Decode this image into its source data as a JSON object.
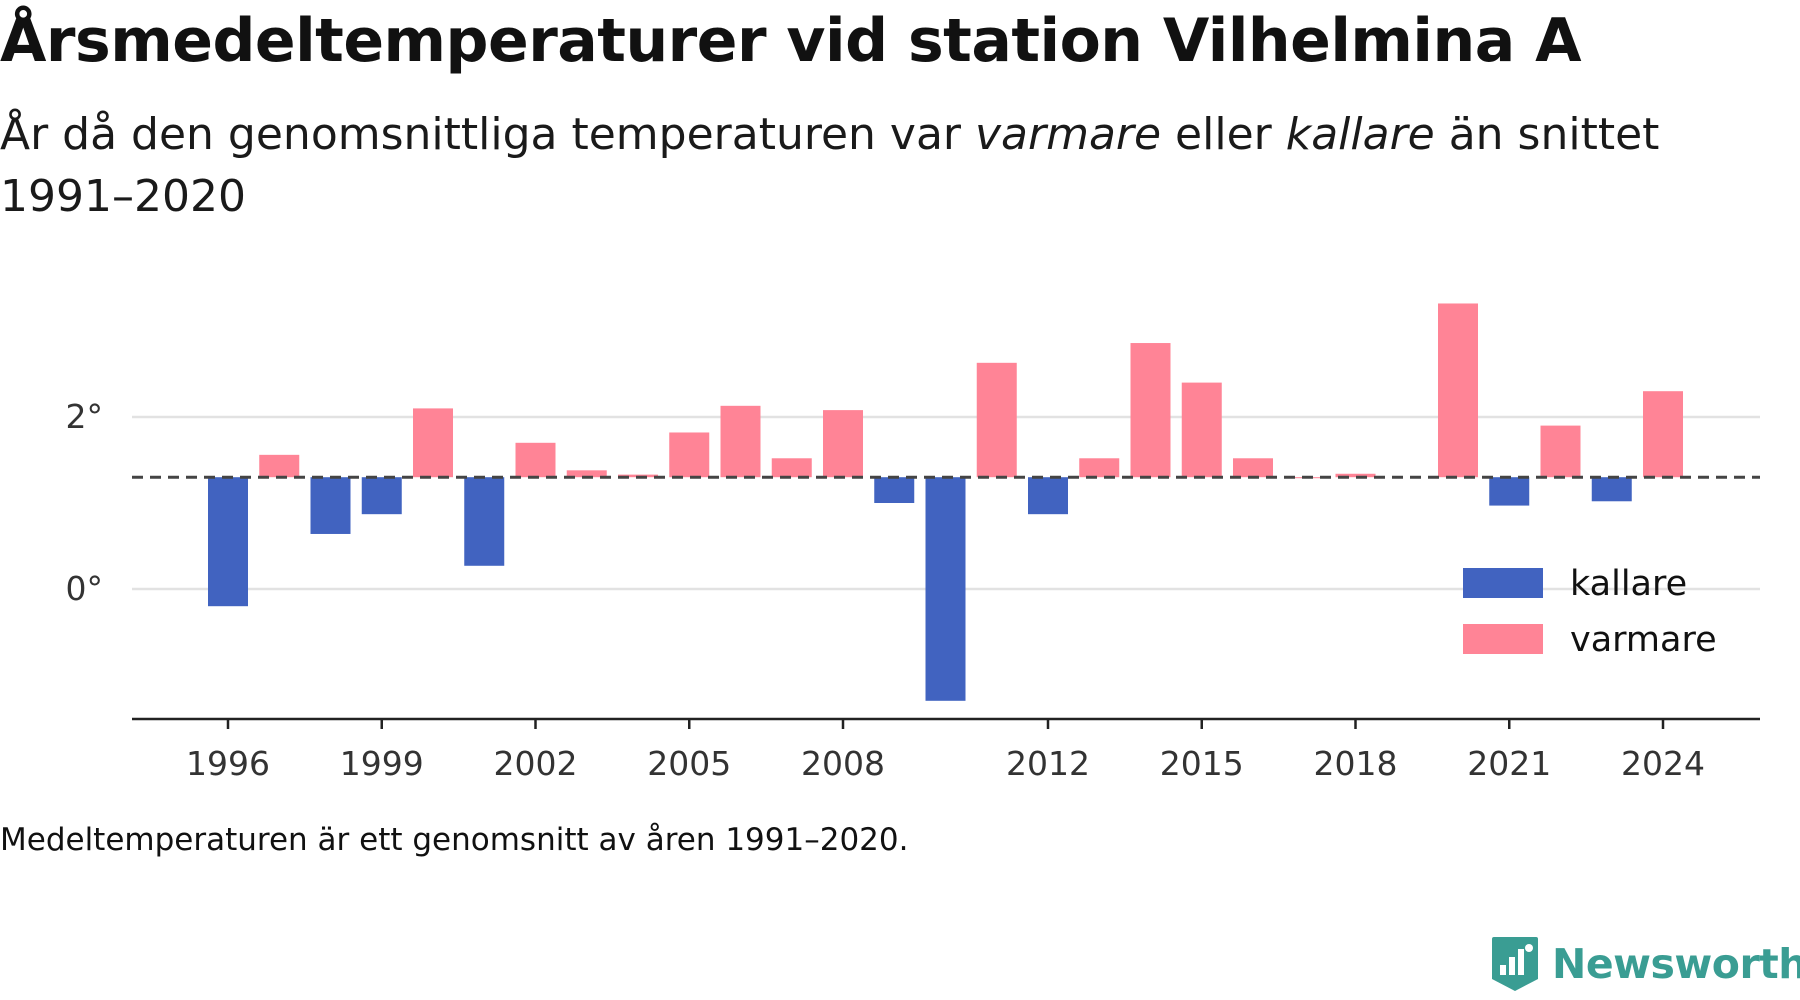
{
  "title": "Årsmedeltemperaturer vid station Vilhelmina A",
  "subtitle": {
    "part1": "År då den genomsnittliga temperaturen var ",
    "em1": "varmare",
    "part2": " eller ",
    "em2": "kallare",
    "part3": " än snittet 1991–2020"
  },
  "footnote": "Medeltemperaturen är ett genomsnitt av åren 1991–2020.",
  "brand": {
    "name": "Newsworthy",
    "color": "#3a9d93",
    "icon": "newsworthy-logo-icon"
  },
  "chart_data": {
    "type": "bar",
    "reference_line": {
      "value": 1.3,
      "style": "dashed"
    },
    "categories": [
      1996,
      1997,
      1998,
      1999,
      2000,
      2001,
      2002,
      2003,
      2004,
      2005,
      2006,
      2007,
      2008,
      2009,
      2010,
      2011,
      2012,
      2013,
      2014,
      2015,
      2016,
      2017,
      2018,
      2019,
      2020,
      2021,
      2022,
      2023,
      2024
    ],
    "values": [
      -0.2,
      1.56,
      0.64,
      0.87,
      2.1,
      0.27,
      1.7,
      1.38,
      1.33,
      1.82,
      2.13,
      1.52,
      2.08,
      1.0,
      -1.3,
      2.63,
      0.87,
      1.52,
      2.86,
      2.4,
      1.52,
      1.3,
      1.34,
      null,
      3.32,
      0.97,
      1.9,
      1.02,
      2.3
    ],
    "series": [
      {
        "name": "kallare",
        "color": "#4163c0"
      },
      {
        "name": "varmare",
        "color": "#ff8496"
      }
    ],
    "xticks": [
      "1996",
      "1999",
      "2002",
      "2005",
      "2008",
      "2012",
      "2015",
      "2018",
      "2021",
      "2024"
    ],
    "yticks": [
      {
        "value": 0,
        "label": "0°"
      },
      {
        "value": 2,
        "label": "2°"
      }
    ],
    "ylim": [
      -1.5,
      3.5
    ],
    "grid": "horizontal",
    "legend": {
      "position": "bottom-right",
      "items": [
        "kallare",
        "varmare"
      ]
    },
    "xlabel": "",
    "ylabel": ""
  }
}
